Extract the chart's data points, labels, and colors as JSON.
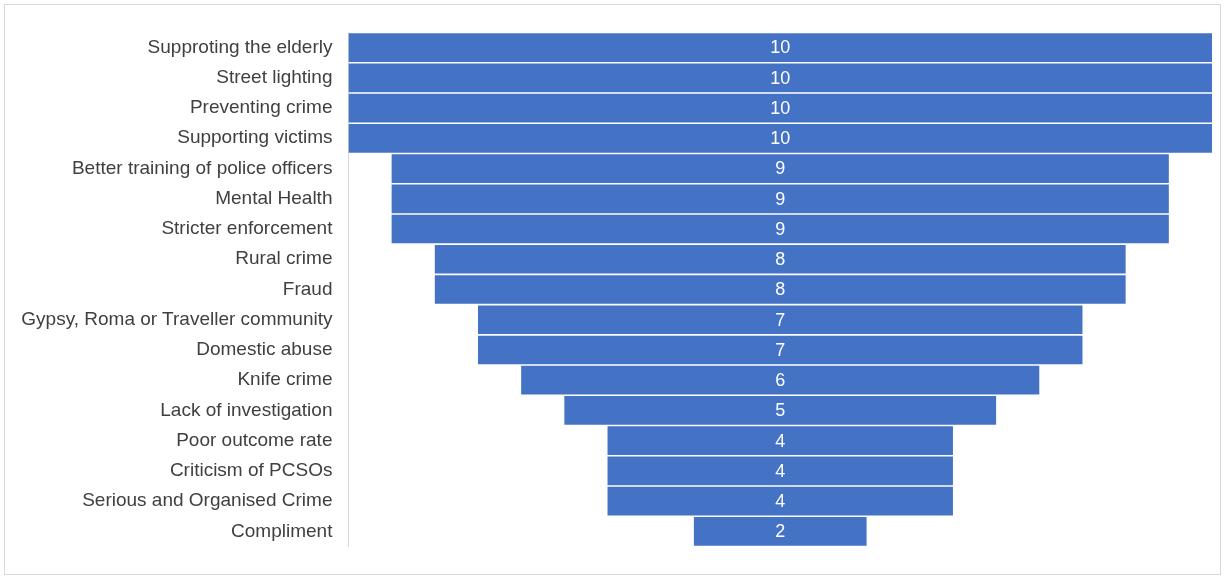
{
  "chart_data": {
    "type": "other",
    "categories": [
      "Supproting the elderly",
      "Street lighting",
      "Preventing crime",
      "Supporting victims",
      "Better training of police officers",
      "Mental Health",
      "Stricter enforcement",
      "Rural crime",
      "Fraud",
      "Gypsy, Roma or Traveller community",
      "Domestic abuse",
      "Knife crime",
      "Lack of investigation",
      "Poor outcome rate",
      "Criticism of PCSOs",
      "Serious and Organised Crime",
      "Compliment"
    ],
    "values": [
      10,
      10,
      10,
      10,
      9,
      9,
      9,
      8,
      8,
      7,
      7,
      6,
      5,
      4,
      4,
      4,
      2
    ],
    "color": "#4472c4",
    "data_labels": true
  }
}
